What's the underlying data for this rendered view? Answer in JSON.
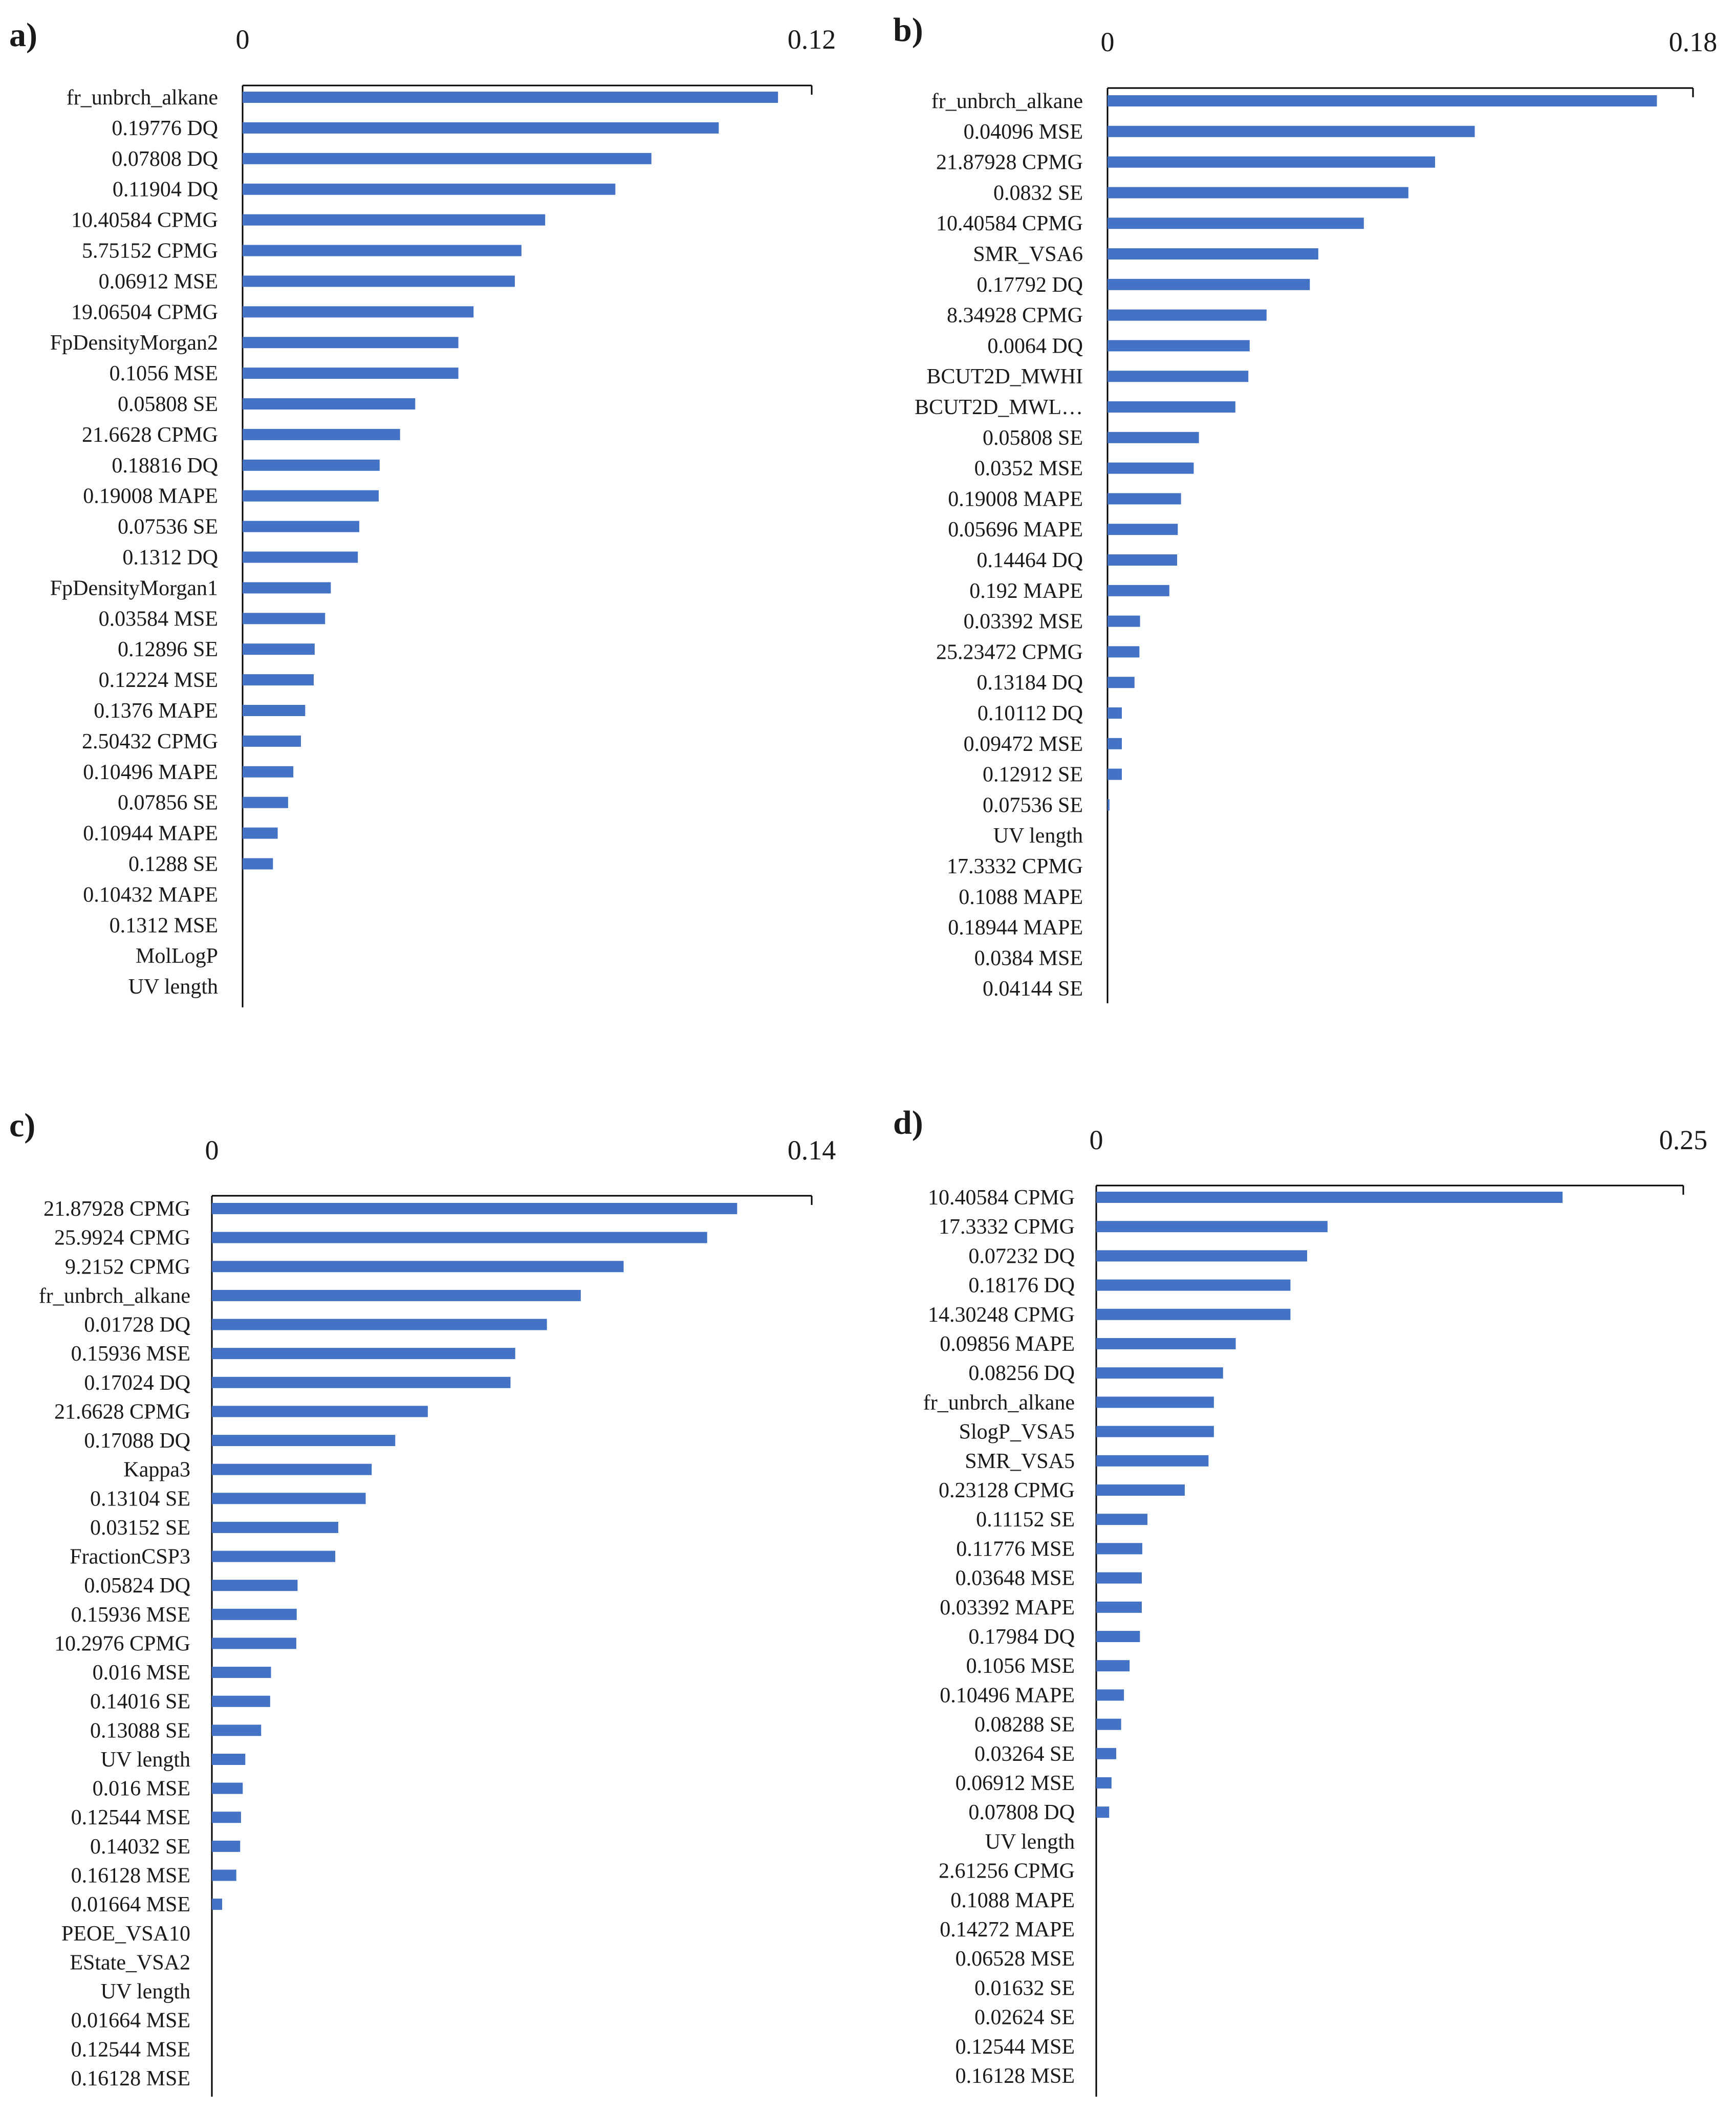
{
  "colors": {
    "bar": "#4472C4",
    "axis": "#000000",
    "text": "#1a1a1a"
  },
  "chart_data": [
    {
      "panel": "a)",
      "type": "bar",
      "orientation": "horizontal",
      "xlim": [
        0,
        0.12
      ],
      "tick_labels": [
        "0",
        "0.12"
      ],
      "categories": [
        "fr_unbrch_alkane",
        "0.19776 DQ",
        "0.07808 DQ",
        "0.11904 DQ",
        "10.40584 CPMG",
        "5.75152 CPMG",
        "0.06912 MSE",
        "19.06504 CPMG",
        "FpDensityMorgan2",
        "0.1056 MSE",
        "0.05808 SE",
        "21.6628 CPMG",
        "0.18816 DQ",
        "0.19008 MAPE",
        "0.07536 SE",
        "0.1312 DQ",
        "FpDensityMorgan1",
        "0.03584 MSE",
        "0.12896 SE",
        "0.12224 MSE",
        "0.1376 MAPE",
        "2.50432 CPMG",
        "0.10496 MAPE",
        "0.07856 SE",
        "0.10944 MAPE",
        "0.1288 SE",
        "0.10432 MAPE",
        "0.1312 MSE",
        "MolLogP",
        "UV length"
      ],
      "values": [
        0.1129,
        0.1004,
        0.0862,
        0.0786,
        0.0638,
        0.0588,
        0.0574,
        0.0487,
        0.0455,
        0.0455,
        0.0364,
        0.0332,
        0.0289,
        0.0287,
        0.0246,
        0.0243,
        0.0186,
        0.0174,
        0.0152,
        0.015,
        0.0132,
        0.0123,
        0.0107,
        0.0096,
        0.0074,
        0.0064,
        0,
        0,
        0,
        0
      ]
    },
    {
      "panel": "b)",
      "type": "bar",
      "orientation": "horizontal",
      "xlim": [
        0,
        0.18
      ],
      "tick_labels": [
        "0",
        "0.18"
      ],
      "categories": [
        "fr_unbrch_alkane",
        "0.04096 MSE",
        "21.87928 CPMG",
        "0.0832 SE",
        "10.40584 CPMG",
        "SMR_VSA6",
        "0.17792 DQ",
        "8.34928 CPMG",
        "0.0064 DQ",
        "BCUT2D_MWHI",
        "BCUT2D_MWL…",
        "0.05808 SE",
        "0.0352 MSE",
        "0.19008 MAPE",
        "0.05696 MAPE",
        "0.14464 DQ",
        "0.192 MAPE",
        "0.03392 MSE",
        "25.23472 CPMG",
        "0.13184 DQ",
        "0.10112 DQ",
        "0.09472 MSE",
        "0.12912 SE",
        "0.07536 SE",
        "UV length",
        "17.3332 CPMG",
        "0.1088 MAPE",
        "0.18944 MAPE",
        "0.0384 MSE",
        "0.04144 SE"
      ],
      "values": [
        0.1689,
        0.1129,
        0.1007,
        0.0925,
        0.0788,
        0.0648,
        0.0622,
        0.0489,
        0.0437,
        0.0433,
        0.0393,
        0.0281,
        0.0265,
        0.0226,
        0.0216,
        0.0214,
        0.019,
        0.01,
        0.0098,
        0.0083,
        0.0044,
        0.0044,
        0.0044,
        0.0006,
        0,
        0,
        0,
        0,
        0,
        0
      ]
    },
    {
      "panel": "c)",
      "type": "bar",
      "orientation": "horizontal",
      "xlim": [
        0,
        0.14
      ],
      "tick_labels": [
        "0",
        "0.14"
      ],
      "categories": [
        "21.87928 CPMG",
        "25.9924 CPMG",
        "9.2152 CPMG",
        "fr_unbrch_alkane",
        "0.01728 DQ",
        "0.15936 MSE",
        "0.17024 DQ",
        "21.6628 CPMG",
        "0.17088 DQ",
        "Kappa3",
        "0.13104 SE",
        "0.03152 SE",
        "FractionCSP3",
        "0.05824 DQ",
        "0.15936 MSE",
        "10.2976 CPMG",
        "0.016 MSE",
        "0.14016 SE",
        "0.13088 SE",
        "UV length",
        "0.016 MSE",
        "0.12544 MSE",
        "0.14032 SE",
        "0.16128 MSE",
        "0.01664 MSE",
        "PEOE_VSA10",
        "EState_VSA2",
        "UV length",
        "0.01664 MSE",
        "0.12544 MSE",
        "0.16128 MSE"
      ],
      "values": [
        0.1226,
        0.1156,
        0.0961,
        0.0861,
        0.0782,
        0.0708,
        0.0697,
        0.0504,
        0.0428,
        0.0373,
        0.0359,
        0.0295,
        0.0288,
        0.02,
        0.0198,
        0.0197,
        0.0138,
        0.0136,
        0.0115,
        0.0078,
        0.0072,
        0.0068,
        0.0066,
        0.0057,
        0.0024,
        0,
        0,
        0,
        0,
        0,
        0
      ]
    },
    {
      "panel": "d)",
      "type": "bar",
      "orientation": "horizontal",
      "xlim": [
        0,
        0.25
      ],
      "tick_labels": [
        "0",
        "0.25"
      ],
      "categories": [
        "10.40584 CPMG",
        "17.3332 CPMG",
        "0.07232 DQ",
        "0.18176 DQ",
        "14.30248 CPMG",
        "0.09856 MAPE",
        "0.08256 DQ",
        "fr_unbrch_alkane",
        "SlogP_VSA5",
        "SMR_VSA5",
        "0.23128 CPMG",
        "0.11152 SE",
        "0.11776 MSE",
        "0.03648 MSE",
        "0.03392 MAPE",
        "0.17984 DQ",
        "0.1056 MSE",
        "0.10496 MAPE",
        "0.08288 SE",
        "0.03264 SE",
        "0.06912 MSE",
        "0.07808 DQ",
        "UV length",
        "2.61256 CPMG",
        "0.1088 MAPE",
        "0.14272 MAPE",
        "0.06528 MSE",
        "0.01632 SE",
        "0.02624 SE",
        "0.12544 MSE",
        "0.16128 MSE"
      ],
      "values": [
        0.1986,
        0.0985,
        0.0898,
        0.0827,
        0.0827,
        0.0594,
        0.054,
        0.0501,
        0.0501,
        0.0478,
        0.0377,
        0.0218,
        0.0196,
        0.0194,
        0.0194,
        0.0186,
        0.0142,
        0.0118,
        0.0106,
        0.0085,
        0.0065,
        0.0055,
        0,
        0,
        0,
        0,
        0,
        0,
        0,
        0,
        0
      ]
    }
  ]
}
